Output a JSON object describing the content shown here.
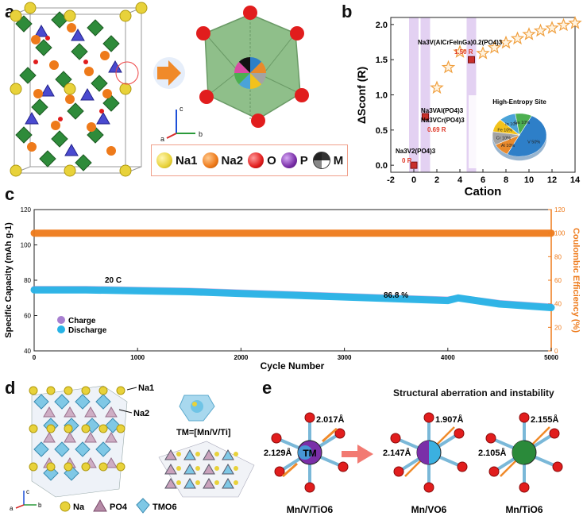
{
  "panels": {
    "a": {
      "label": "a",
      "axis_labels": {
        "c": "c",
        "a": "a",
        "b": "b"
      },
      "legend": [
        {
          "label": "Na1",
          "color": "#e8d23a"
        },
        {
          "label": "Na2",
          "color": "#ee7a1a"
        },
        {
          "label": "O",
          "color": "#e11d1d"
        },
        {
          "label": "P",
          "color": "#7a2fa8"
        },
        {
          "label": "M",
          "color": "#333333"
        }
      ]
    },
    "b": {
      "label": "b",
      "ylabel": "ΔSconf (R)",
      "xlabel": "Cation",
      "annotations": {
        "nv2": "Na3V2(PO4)3",
        "nv2_value": "0 R",
        "nvai": "Na3VAl(PO4)3",
        "nvcr": "Na3VCr(PO4)3",
        "mid_value": "0.69 R",
        "he": "Na3V(AlCrFeInGa)0.2(PO4)3",
        "he_value": "1.50 R"
      },
      "pie": {
        "title": "High-Entropy Site",
        "slices": [
          {
            "label": "V 50%",
            "value": 50,
            "color": "#2e7fc8"
          },
          {
            "label": "Al 10%",
            "value": 10,
            "color": "#e98a2c"
          },
          {
            "label": "Cr 10%",
            "value": 10,
            "color": "#a3a3a3"
          },
          {
            "label": "Fe 10%",
            "value": 10,
            "color": "#f2c21b"
          },
          {
            "label": "In 10%",
            "value": 10,
            "color": "#4aa3d8"
          },
          {
            "label": "Ga 10%",
            "value": 10,
            "color": "#4caf50"
          }
        ]
      }
    },
    "c": {
      "label": "c",
      "ylabel_left": "Specific Capacity (mAh g-1)",
      "ylabel_right": "Coulombic Efficiency (%)",
      "xlabel": "Cycle Number",
      "rate_label": "20 C",
      "retention_label": "86.8 %",
      "legend": [
        {
          "label": "Charge",
          "color": "#a77fd0"
        },
        {
          "label": "Discharge",
          "color": "#27b3e6"
        }
      ]
    },
    "d": {
      "label": "d",
      "site_labels": {
        "na1": "Na1",
        "na2": "Na2"
      },
      "tm_label": "TM=[Mn/V/Ti]",
      "legend": [
        {
          "label": "Na",
          "color": "#e8d23a"
        },
        {
          "label": "PO4",
          "color": "#b58aa6"
        },
        {
          "label": "TMO6",
          "color": "#7fc8e6"
        }
      ],
      "axis_labels": {
        "c": "c",
        "a": "a",
        "b": "b"
      }
    },
    "e": {
      "label": "e",
      "title": "Structural aberration and instability",
      "center_label": "TM",
      "octahedra": [
        {
          "name": "Mn/V/TiO6",
          "d1": "2.017Å",
          "d2": "2.129Å",
          "center": "#7a2fa8"
        },
        {
          "name": "Mn/VO6",
          "d1": "1.907Å",
          "d2": "2.147Å",
          "center": "#3bb0e0"
        },
        {
          "name": "Mn/TiO6",
          "d1": "2.155Å",
          "d2": "2.105Å",
          "center": "#2a8a3a"
        }
      ]
    }
  },
  "chart_data": [
    {
      "type": "scatter",
      "title": "",
      "xlabel": "Cation",
      "ylabel": "ΔSconf (R)",
      "xlim": [
        -2,
        14
      ],
      "ylim": [
        -0.1,
        2.1
      ],
      "xticks": [
        "-2",
        "0",
        "2",
        "4",
        "6",
        "8",
        "10",
        "12",
        "14"
      ],
      "yticks": [
        "0.0",
        "0.5",
        "1.0",
        "1.5",
        "2.0"
      ],
      "x": [
        0,
        1,
        2,
        3,
        4,
        5,
        6,
        7,
        8,
        9,
        10,
        11,
        12,
        13,
        14
      ],
      "values": [
        0,
        0.69,
        1.1,
        1.39,
        1.61,
        1.5,
        1.59,
        1.67,
        1.74,
        1.8,
        1.86,
        1.91,
        1.95,
        1.99,
        2.02
      ],
      "highlights_x": [
        0,
        1,
        5
      ]
    },
    {
      "type": "scatter",
      "title": "",
      "xlabel": "Cycle Number",
      "ylabel": "Specific Capacity (mAh g-1)",
      "ylabel_right": "Coulombic Efficiency (%)",
      "xlim": [
        0,
        5000
      ],
      "ylim": [
        40,
        120
      ],
      "ylim_right": [
        0,
        120
      ],
      "xticks": [
        "0",
        "1000",
        "2000",
        "3000",
        "4000",
        "5000"
      ],
      "yticks": [
        "40",
        "60",
        "80",
        "100",
        "120"
      ],
      "yticks_right": [
        "0",
        "20",
        "40",
        "60",
        "80",
        "100",
        "120"
      ],
      "series": [
        {
          "name": "Charge",
          "x": [
            0,
            500,
            1000,
            1500,
            2000,
            2500,
            3000,
            3500,
            4000,
            4100,
            4500,
            5000
          ],
          "values": [
            75,
            75,
            74.5,
            74,
            73,
            72,
            71,
            70,
            69,
            70,
            67,
            65
          ]
        },
        {
          "name": "Discharge",
          "x": [
            0,
            500,
            1000,
            1500,
            2000,
            2500,
            3000,
            3500,
            4000,
            4100,
            4500,
            5000
          ],
          "values": [
            74.5,
            74.5,
            74,
            73.5,
            72.5,
            71.5,
            70.5,
            69.5,
            68.5,
            70,
            66.5,
            64.5
          ]
        },
        {
          "name": "Coulombic Efficiency",
          "x": [
            0,
            1000,
            2000,
            3000,
            4000,
            5000
          ],
          "values": [
            100,
            100,
            100,
            100,
            100,
            100
          ]
        }
      ]
    }
  ]
}
